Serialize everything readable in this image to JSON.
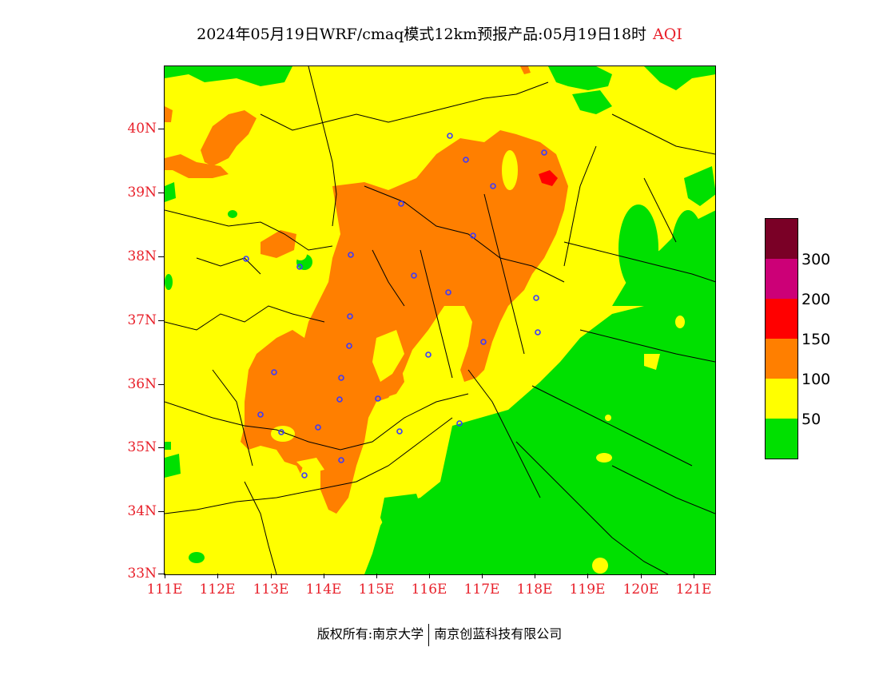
{
  "title": {
    "main": "2024年05月19日WRF/cmaq模式12km预报产品:05月19日18时",
    "variable": "AQI"
  },
  "map": {
    "latitude_labels": [
      "40N",
      "39N",
      "38N",
      "37N",
      "36N",
      "35N",
      "34N",
      "33N"
    ],
    "longitude_labels": [
      "111E",
      "112E",
      "113E",
      "114E",
      "115E",
      "116E",
      "117E",
      "118E",
      "119E",
      "120E",
      "121E"
    ],
    "lat_range": [
      33,
      41
    ],
    "lon_range": [
      111,
      121.4
    ]
  },
  "legend": {
    "levels": [
      "300",
      "200",
      "150",
      "100",
      "50"
    ],
    "colors": {
      "above_300": "#7a0026",
      "200_300": "#cc0077",
      "150_200": "#ff0000",
      "100_150": "#ff7f00",
      "50_100": "#ffff00",
      "0_50": "#00e000"
    }
  },
  "footer": {
    "left": "版权所有:南京大学",
    "right": "南京创蓝科技有限公司"
  }
}
